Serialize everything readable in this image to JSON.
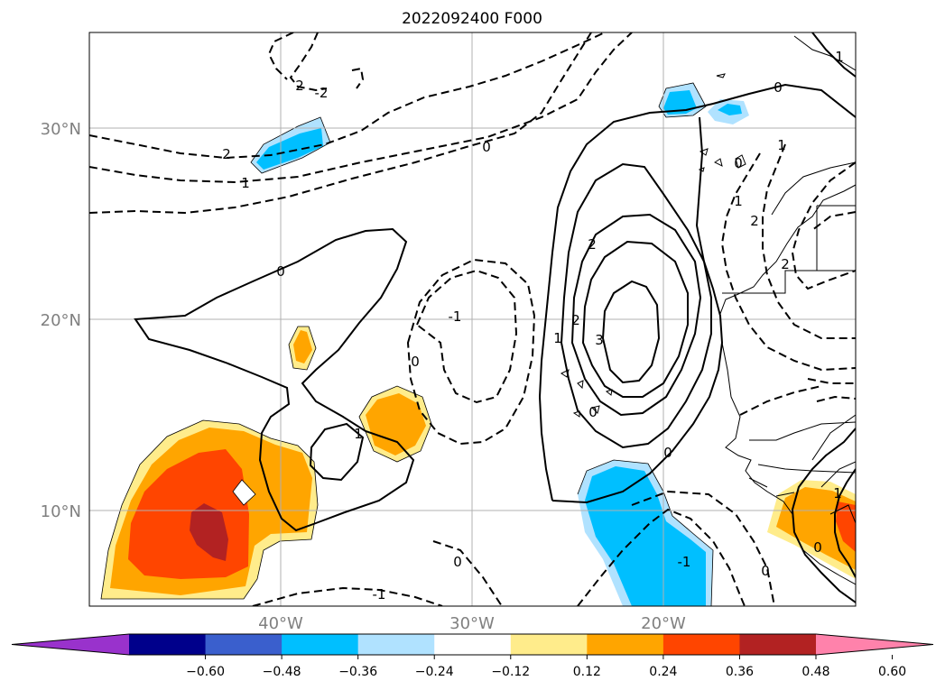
{
  "title": "2022092400 F000",
  "axes": {
    "lat_labels": [
      "30°N",
      "20°N",
      "10°N"
    ],
    "lon_labels": [
      "40°W",
      "30°W",
      "20°W"
    ],
    "grid": true
  },
  "contour_labels": [
    "2",
    "-2",
    "2",
    "1",
    "0",
    "0",
    "0",
    "-1",
    "0",
    "1",
    "1",
    "2",
    "2",
    "3",
    "0",
    "0",
    "-1",
    "0",
    "-1",
    "1",
    "0",
    "1",
    "0",
    "1",
    "2",
    "2",
    "0",
    "1"
  ],
  "colorbar": {
    "ticks": [
      "−0.60",
      "−0.48",
      "−0.36",
      "−0.24",
      "−0.12",
      "0.12",
      "0.24",
      "0.36",
      "0.48",
      "0.60"
    ],
    "colors": [
      "#9932cc",
      "#00008b",
      "#3a5fcd",
      "#00bfff",
      "#b0e2ff",
      "#ffffff",
      "#ffec8b",
      "#ffa500",
      "#ff4500",
      "#b22222",
      "#ff82ab"
    ],
    "extend": "both"
  }
}
